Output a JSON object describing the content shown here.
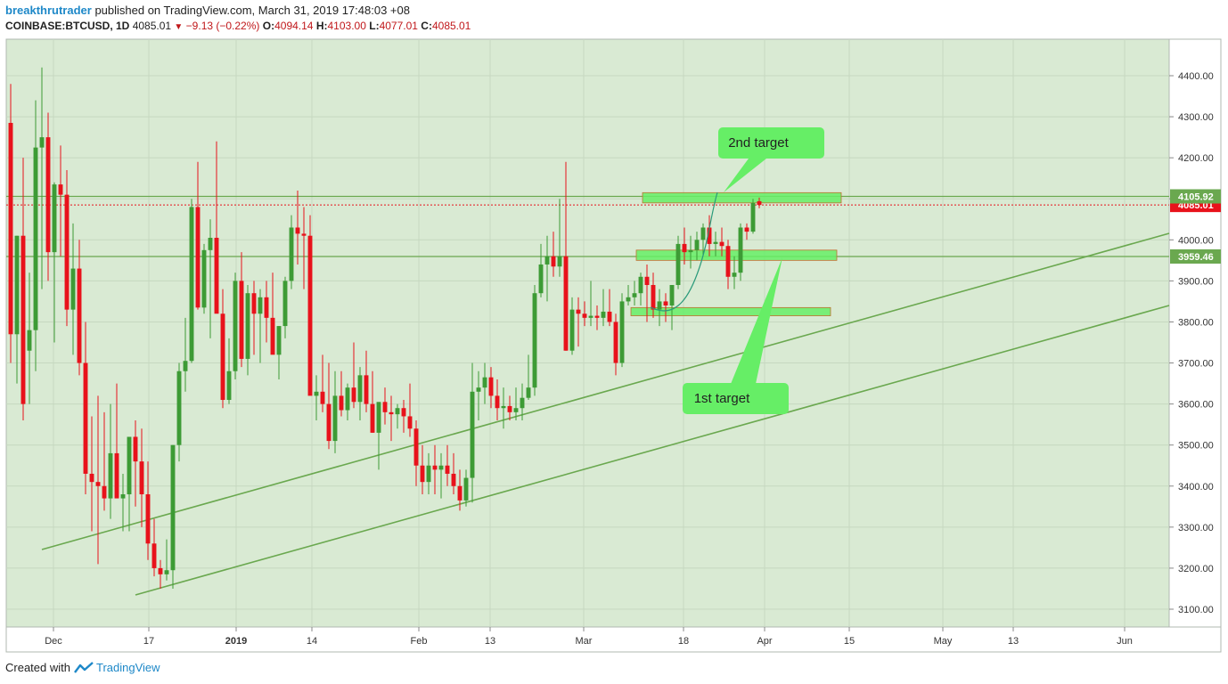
{
  "header": {
    "user": "breakthrutrader",
    "published": "published on TradingView.com, March 31, 2019 17:48:03 +08",
    "symbol": "COINBASE:BTCUSD, 1D",
    "last": "4085.01",
    "change": "−9.13 (−0.22%)",
    "o_label": "O:",
    "o": "4094.14",
    "h_label": "H:",
    "h": "4103.00",
    "l_label": "L:",
    "l": "4077.01",
    "c_label": "C:",
    "c": "4085.01"
  },
  "footer": {
    "created_with": "Created with",
    "brand": "TradingView"
  },
  "colors": {
    "bg": "#d9ead3",
    "up": "#3d9b35",
    "down": "#e8121b",
    "line": "#6aa84f",
    "box": "#66ee66",
    "price_tag_red": "#e8121b"
  },
  "annotations": {
    "target1": "1st target",
    "target2": "2nd target"
  },
  "price_tags": {
    "level1": "4105.92",
    "last": "4085.01",
    "level2": "3959.46"
  },
  "chart_data": {
    "type": "candlestick",
    "title": "",
    "y_ticks": [
      "4400.00",
      "4300.00",
      "4200.00",
      "4100.00",
      "4000.00",
      "3900.00",
      "3800.00",
      "3700.00",
      "3600.00",
      "3500.00",
      "3400.00",
      "3300.00",
      "3200.00",
      "3100.00"
    ],
    "x_ticks": [
      "Dec",
      "17",
      "2019",
      "14",
      "Feb",
      "13",
      "Mar",
      "18",
      "Apr",
      "15",
      "May",
      "13",
      "Jun"
    ],
    "ylim": [
      3050,
      4480
    ],
    "horizontal_levels": [
      4105.92,
      3959.46
    ],
    "last_price": 4085.01,
    "candles_ohlc": [
      [
        4285,
        4380,
        3700,
        3770
      ],
      [
        3770,
        4010,
        3650,
        4010
      ],
      [
        4010,
        4200,
        3560,
        3600
      ],
      [
        3730,
        3920,
        3600,
        3780
      ],
      [
        3780,
        4340,
        3680,
        4225
      ],
      [
        4225,
        4420,
        3880,
        4250
      ],
      [
        4250,
        4310,
        3900,
        3970
      ],
      [
        3970,
        4140,
        3750,
        4135
      ],
      [
        4135,
        4230,
        3960,
        4110
      ],
      [
        4110,
        4170,
        3790,
        3830
      ],
      [
        3830,
        4040,
        3720,
        3930
      ],
      [
        3930,
        4000,
        3670,
        3700
      ],
      [
        3700,
        3800,
        3380,
        3430
      ],
      [
        3430,
        3570,
        3290,
        3410
      ],
      [
        3410,
        3620,
        3210,
        3400
      ],
      [
        3400,
        3580,
        3340,
        3370
      ],
      [
        3370,
        3600,
        3320,
        3480
      ],
      [
        3480,
        3650,
        3380,
        3370
      ],
      [
        3370,
        3430,
        3290,
        3380
      ],
      [
        3380,
        3460,
        3290,
        3520
      ],
      [
        3520,
        3560,
        3350,
        3460
      ],
      [
        3460,
        3540,
        3300,
        3380
      ],
      [
        3380,
        3460,
        3220,
        3260
      ],
      [
        3260,
        3320,
        3180,
        3200
      ],
      [
        3200,
        3220,
        3150,
        3185
      ],
      [
        3185,
        3270,
        3170,
        3195
      ],
      [
        3195,
        3500,
        3150,
        3500
      ],
      [
        3500,
        3700,
        3460,
        3680
      ],
      [
        3680,
        3810,
        3630,
        3705
      ],
      [
        3705,
        4100,
        3700,
        4080
      ],
      [
        4080,
        4190,
        3830,
        3835
      ],
      [
        3835,
        3990,
        3820,
        3975
      ],
      [
        3975,
        4050,
        3760,
        4005
      ],
      [
        4005,
        4240,
        3870,
        3820
      ],
      [
        3820,
        3880,
        3590,
        3610
      ],
      [
        3610,
        3760,
        3600,
        3680
      ],
      [
        3680,
        3920,
        3660,
        3900
      ],
      [
        3900,
        3970,
        3690,
        3710
      ],
      [
        3710,
        3890,
        3670,
        3870
      ],
      [
        3870,
        3900,
        3720,
        3820
      ],
      [
        3820,
        3880,
        3700,
        3860
      ],
      [
        3860,
        3900,
        3750,
        3810
      ],
      [
        3810,
        3920,
        3740,
        3720
      ],
      [
        3720,
        3790,
        3660,
        3790
      ],
      [
        3790,
        3910,
        3760,
        3900
      ],
      [
        3900,
        4060,
        3880,
        4030
      ],
      [
        4030,
        4120,
        3940,
        4015
      ],
      [
        4015,
        4080,
        3880,
        4010
      ],
      [
        4010,
        4060,
        3860,
        3620
      ],
      [
        3620,
        3670,
        3560,
        3630
      ],
      [
        3630,
        3720,
        3580,
        3600
      ],
      [
        3600,
        3700,
        3490,
        3510
      ],
      [
        3510,
        3680,
        3480,
        3620
      ],
      [
        3620,
        3680,
        3570,
        3585
      ],
      [
        3585,
        3650,
        3560,
        3640
      ],
      [
        3640,
        3750,
        3590,
        3605
      ],
      [
        3605,
        3690,
        3560,
        3670
      ],
      [
        3670,
        3730,
        3580,
        3600
      ],
      [
        3600,
        3680,
        3530,
        3530
      ],
      [
        3530,
        3590,
        3440,
        3605
      ],
      [
        3605,
        3640,
        3550,
        3580
      ],
      [
        3580,
        3620,
        3510,
        3575
      ],
      [
        3575,
        3600,
        3540,
        3590
      ],
      [
        3590,
        3610,
        3530,
        3570
      ],
      [
        3570,
        3650,
        3520,
        3540
      ],
      [
        3540,
        3560,
        3400,
        3450
      ],
      [
        3450,
        3500,
        3380,
        3410
      ],
      [
        3410,
        3480,
        3380,
        3450
      ],
      [
        3450,
        3500,
        3380,
        3440
      ],
      [
        3440,
        3480,
        3370,
        3450
      ],
      [
        3450,
        3500,
        3400,
        3430
      ],
      [
        3430,
        3480,
        3380,
        3400
      ],
      [
        3400,
        3440,
        3340,
        3365
      ],
      [
        3365,
        3440,
        3350,
        3420
      ],
      [
        3420,
        3700,
        3360,
        3630
      ],
      [
        3630,
        3680,
        3560,
        3640
      ],
      [
        3640,
        3700,
        3600,
        3665
      ],
      [
        3665,
        3690,
        3590,
        3620
      ],
      [
        3620,
        3660,
        3560,
        3590
      ],
      [
        3590,
        3640,
        3540,
        3595
      ],
      [
        3595,
        3620,
        3560,
        3580
      ],
      [
        3580,
        3640,
        3560,
        3590
      ],
      [
        3590,
        3650,
        3560,
        3615
      ],
      [
        3615,
        3720,
        3610,
        3640
      ],
      [
        3640,
        3890,
        3620,
        3870
      ],
      [
        3870,
        3990,
        3860,
        3940
      ],
      [
        3940,
        4010,
        3850,
        3960
      ],
      [
        3960,
        4020,
        3910,
        3935
      ],
      [
        3935,
        4100,
        3910,
        3960
      ],
      [
        3960,
        4190,
        3730,
        3730
      ],
      [
        3730,
        3860,
        3720,
        3830
      ],
      [
        3830,
        3860,
        3740,
        3820
      ],
      [
        3820,
        3850,
        3790,
        3810
      ],
      [
        3810,
        3900,
        3790,
        3815
      ],
      [
        3815,
        3840,
        3780,
        3810
      ],
      [
        3810,
        3880,
        3790,
        3825
      ],
      [
        3825,
        3880,
        3790,
        3800
      ],
      [
        3800,
        3820,
        3670,
        3700
      ],
      [
        3700,
        3870,
        3690,
        3850
      ],
      [
        3850,
        3890,
        3840,
        3860
      ],
      [
        3860,
        3900,
        3840,
        3870
      ],
      [
        3870,
        3920,
        3840,
        3910
      ],
      [
        3910,
        3940,
        3800,
        3890
      ],
      [
        3890,
        3920,
        3810,
        3830
      ],
      [
        3830,
        3880,
        3790,
        3850
      ],
      [
        3850,
        3870,
        3800,
        3840
      ],
      [
        3840,
        3890,
        3780,
        3890
      ],
      [
        3890,
        4010,
        3880,
        3990
      ],
      [
        3990,
        4030,
        3940,
        3970
      ],
      [
        3970,
        4010,
        3930,
        3975
      ],
      [
        3975,
        4020,
        3950,
        4000
      ],
      [
        4000,
        4040,
        3960,
        4030
      ],
      [
        4030,
        4060,
        3960,
        3990
      ],
      [
        3990,
        4020,
        3960,
        3995
      ],
      [
        3995,
        4030,
        3960,
        3985
      ],
      [
        3985,
        4000,
        3880,
        3910
      ],
      [
        3910,
        3960,
        3880,
        3920
      ],
      [
        3920,
        4040,
        3900,
        4030
      ],
      [
        4030,
        4040,
        4000,
        4020
      ],
      [
        4020,
        4100,
        4015,
        4090
      ],
      [
        4094.14,
        4103,
        4077.01,
        4085.01
      ]
    ],
    "trendlines": [
      {
        "from": [
          "~Dec 1",
          3250
        ],
        "to": [
          "~Jun 10",
          4015
        ]
      },
      {
        "from": [
          "~Dec 16",
          3135
        ],
        "to": [
          "~Jun 10",
          3840
        ]
      }
    ],
    "zones": [
      {
        "label": "2nd target",
        "price": [
          4090,
          4115
        ]
      },
      {
        "label": "",
        "price": [
          3950,
          3975
        ]
      },
      {
        "label": "",
        "price": [
          3815,
          3835
        ]
      }
    ]
  }
}
